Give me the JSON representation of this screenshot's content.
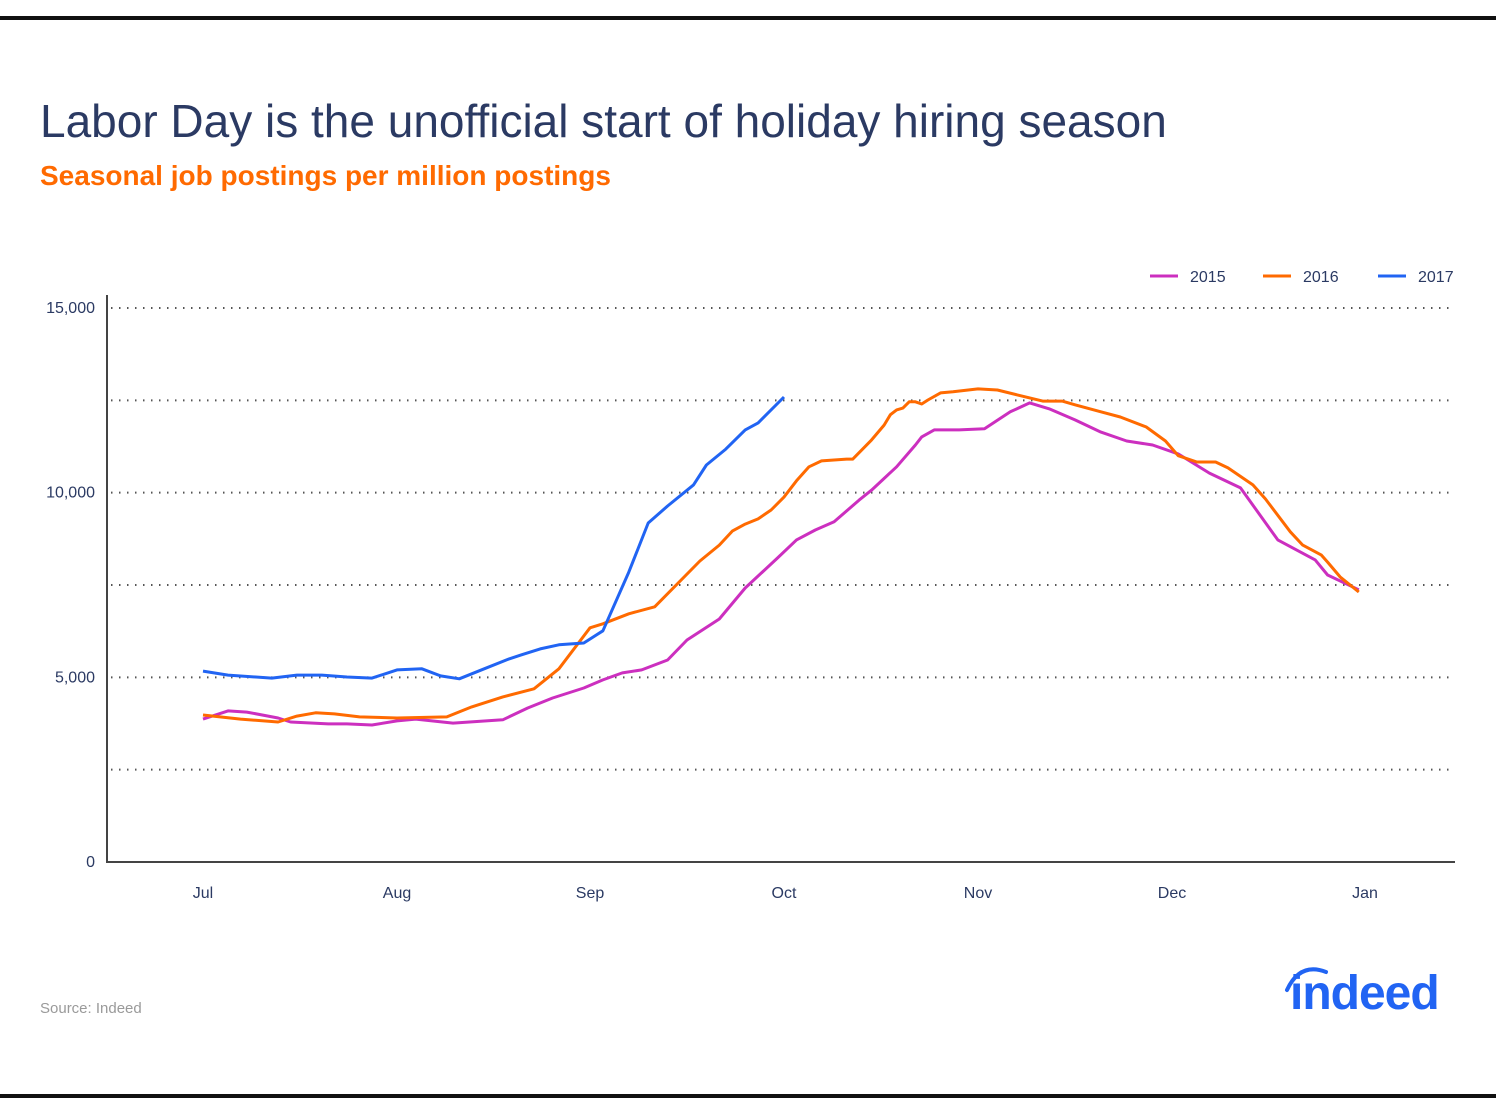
{
  "title": "Labor Day is the unofficial start of holiday hiring season",
  "subtitle": "Seasonal job postings per million postings",
  "source": "Source: Indeed",
  "logo_text": "indeed",
  "colors": {
    "2015": "#cc2fbf",
    "2016": "#ff6a00",
    "2017": "#2164f3",
    "title": "#2b3a63",
    "subtitle": "#ff6a00"
  },
  "chart_data": {
    "type": "line",
    "title": "Labor Day is the unofficial start of holiday hiring season",
    "subtitle": "Seasonal job postings per million postings",
    "xlabel": "",
    "ylabel": "",
    "ylim": [
      0,
      15000
    ],
    "yticks": [
      0,
      2500,
      5000,
      7500,
      10000,
      12500,
      15000
    ],
    "ytick_labels": [
      "0",
      "",
      "5,000",
      "",
      "10,000",
      "",
      "15,000"
    ],
    "xticks": [
      "07-01",
      "08-01",
      "09-01",
      "10-01",
      "11-01",
      "12-01",
      "01-01"
    ],
    "xtick_labels": [
      "Jul",
      "Aug",
      "Sep",
      "Oct",
      "Nov",
      "Dec",
      "Jan"
    ],
    "grid": "horizontal dotted",
    "legend": "top-right",
    "series": [
      {
        "name": "2015",
        "color": "#cc2fbf",
        "x": [
          "07-01",
          "07-05",
          "07-08",
          "07-13",
          "07-15",
          "07-21",
          "07-24",
          "07-28",
          "08-01",
          "08-04",
          "08-10",
          "08-18",
          "08-22",
          "08-26",
          "08-31",
          "09-03",
          "09-06",
          "09-09",
          "09-13",
          "09-16",
          "09-21",
          "09-25",
          "09-30",
          "10-03",
          "10-06",
          "10-09",
          "10-13",
          "10-15",
          "10-19",
          "10-22",
          "10-23",
          "10-25",
          "10-29",
          "11-02",
          "11-06",
          "11-09",
          "11-12",
          "11-16",
          "11-20",
          "11-24",
          "11-28",
          "12-02",
          "12-07",
          "12-12",
          "12-18",
          "12-24",
          "12-26",
          "12-31"
        ],
        "y": [
          3870,
          4090,
          4060,
          3900,
          3790,
          3740,
          3740,
          3710,
          3820,
          3870,
          3760,
          3850,
          4170,
          4440,
          4710,
          4930,
          5120,
          5200,
          5470,
          6010,
          6580,
          7420,
          8230,
          8720,
          8990,
          9210,
          9800,
          10070,
          10700,
          11290,
          11510,
          11700,
          11700,
          11730,
          12190,
          12430,
          12270,
          11970,
          11640,
          11400,
          11290,
          11050,
          10530,
          10130,
          8720,
          8180,
          7770,
          7370
        ]
      },
      {
        "name": "2016",
        "color": "#ff6a00",
        "x": [
          "07-01",
          "07-07",
          "07-13",
          "07-16",
          "07-19",
          "07-22",
          "07-26",
          "08-01",
          "08-09",
          "08-13",
          "08-18",
          "08-23",
          "08-27",
          "09-01",
          "09-03",
          "09-07",
          "09-11",
          "09-18",
          "09-21",
          "09-23",
          "09-25",
          "09-27",
          "09-29",
          "10-01",
          "10-03",
          "10-05",
          "10-07",
          "10-11",
          "10-12",
          "10-15",
          "10-17",
          "10-18",
          "10-19",
          "10-20",
          "10-21",
          "10-22",
          "10-23",
          "10-24",
          "10-26",
          "10-28",
          "11-01",
          "11-04",
          "11-07",
          "11-11",
          "11-14",
          "11-16",
          "11-20",
          "11-23",
          "11-27",
          "11-30",
          "12-02",
          "12-05",
          "12-08",
          "12-10",
          "12-14",
          "12-16",
          "12-20",
          "12-22",
          "12-25",
          "12-26",
          "12-28",
          "12-31"
        ],
        "y": [
          3980,
          3870,
          3790,
          3950,
          4040,
          4010,
          3930,
          3900,
          3930,
          4200,
          4470,
          4690,
          5230,
          6340,
          6450,
          6720,
          6910,
          8150,
          8580,
          8960,
          9150,
          9290,
          9530,
          9880,
          10320,
          10700,
          10860,
          10910,
          10910,
          11430,
          11830,
          12110,
          12240,
          12290,
          12460,
          12460,
          12400,
          12510,
          12700,
          12730,
          12810,
          12780,
          12650,
          12480,
          12480,
          12380,
          12190,
          12050,
          11780,
          11400,
          11000,
          10830,
          10830,
          10670,
          10210,
          9830,
          8940,
          8580,
          8310,
          8120,
          7720,
          7310
        ]
      },
      {
        "name": "2017",
        "color": "#2164f3",
        "x": [
          "07-01",
          "07-05",
          "07-12",
          "07-16",
          "07-20",
          "07-24",
          "07-28",
          "08-01",
          "08-05",
          "08-08",
          "08-11",
          "08-15",
          "08-19",
          "08-21",
          "08-24",
          "08-27",
          "08-31",
          "09-03",
          "09-07",
          "09-10",
          "09-13",
          "09-17",
          "09-19",
          "09-22",
          "09-25",
          "09-27",
          "10-01"
        ],
        "y": [
          5170,
          5060,
          4980,
          5060,
          5060,
          5010,
          4980,
          5200,
          5230,
          5040,
          4960,
          5230,
          5500,
          5610,
          5770,
          5880,
          5930,
          6260,
          7850,
          9180,
          9640,
          10210,
          10750,
          11180,
          11700,
          11890,
          12590
        ]
      }
    ]
  }
}
